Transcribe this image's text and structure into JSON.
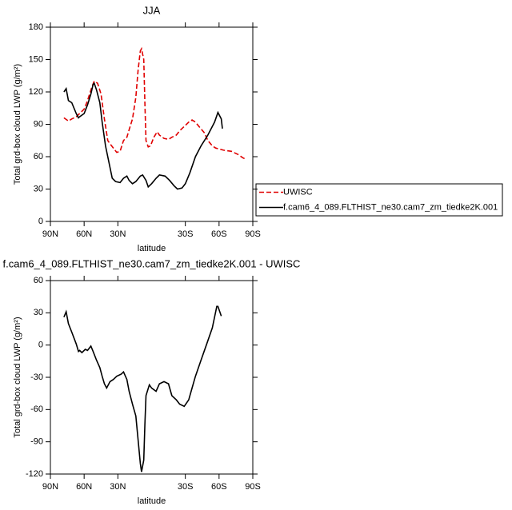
{
  "chart_data": [
    {
      "type": "line",
      "title": "JJA",
      "xlabel": "latitude",
      "ylabel": "Total grd-box cloud LWP (g/m²)",
      "xlim": [
        90,
        -90
      ],
      "xticks": [
        {
          "value": 90,
          "label": "90N"
        },
        {
          "value": 60,
          "label": "60N"
        },
        {
          "value": 30,
          "label": "30N"
        },
        {
          "value": -30,
          "label": "30S"
        },
        {
          "value": -60,
          "label": "60S"
        },
        {
          "value": -90,
          "label": "90S"
        }
      ],
      "ylim": [
        0,
        180
      ],
      "yticks": [
        0,
        30,
        60,
        90,
        120,
        150,
        180
      ],
      "legend": "right",
      "series": [
        {
          "name": "UWISC",
          "color": "#e00000",
          "dash": true,
          "x": [
            78,
            74,
            71,
            67,
            64,
            60,
            57,
            53,
            51,
            48,
            45,
            42,
            39,
            37,
            34,
            31,
            28,
            25,
            22,
            20,
            17,
            14,
            12,
            10,
            9,
            7,
            6,
            5,
            3,
            1,
            -2,
            -5,
            -7,
            -11,
            -15,
            -18,
            -22,
            -25,
            -29,
            -33,
            -36,
            -39,
            -43,
            -47,
            -50,
            -54,
            -57,
            -64,
            -71,
            -77,
            -81,
            -83
          ],
          "values": [
            96,
            93,
            95,
            97,
            100,
            104,
            112,
            125,
            130,
            128,
            118,
            95,
            75,
            72,
            68,
            64,
            65,
            75,
            78,
            85,
            95,
            115,
            140,
            158,
            160,
            150,
            110,
            75,
            69,
            70,
            78,
            83,
            80,
            77,
            76,
            78,
            80,
            84,
            88,
            92,
            94,
            92,
            87,
            82,
            75,
            70,
            68,
            66,
            65,
            62,
            59,
            58
          ]
        },
        {
          "name": "f.cam6_4_089.FLTHIST_ne30.cam7_zm_tiedke2K.001",
          "color": "#000000",
          "dash": false,
          "x": [
            78,
            76,
            74,
            71,
            67,
            65,
            64,
            60,
            57,
            54,
            52,
            51,
            49,
            46,
            44,
            41,
            37,
            35,
            32,
            28,
            25,
            22,
            20,
            17,
            14,
            10,
            8,
            5,
            3,
            0,
            -4,
            -7,
            -12,
            -16,
            -20,
            -23,
            -27,
            -30,
            -34,
            -39,
            -44,
            -50,
            -56,
            -59,
            -62,
            -63
          ],
          "values": [
            120,
            123,
            112,
            110,
            100,
            96,
            97,
            100,
            108,
            118,
            127,
            128,
            122,
            110,
            92,
            70,
            50,
            40,
            37,
            36,
            40,
            42,
            38,
            35,
            37,
            42,
            43,
            38,
            32,
            35,
            40,
            43,
            42,
            38,
            33,
            30,
            31,
            35,
            45,
            60,
            70,
            80,
            92,
            101,
            95,
            86
          ]
        }
      ]
    },
    {
      "type": "line",
      "title": "f.cam6_4_089.FLTHIST_ne30.cam7_zm_tiedke2K.001 - UWISC",
      "xlabel": "latitude",
      "ylabel": "Total grd-box cloud LWP (g/m²)",
      "xlim": [
        90,
        -90
      ],
      "xticks": [
        {
          "value": 90,
          "label": "90N"
        },
        {
          "value": 60,
          "label": "60N"
        },
        {
          "value": 30,
          "label": "30N"
        },
        {
          "value": -30,
          "label": "30S"
        },
        {
          "value": -60,
          "label": "60S"
        },
        {
          "value": -90,
          "label": "90S"
        }
      ],
      "ylim": [
        -120,
        60
      ],
      "yticks": [
        -120,
        -90,
        -60,
        -30,
        0,
        30,
        60
      ],
      "series": [
        {
          "color": "#000000",
          "dash": false,
          "x": [
            78,
            76,
            74,
            71,
            67,
            65,
            64,
            62,
            59,
            57,
            54,
            52,
            49,
            46,
            44,
            42,
            40,
            37,
            34,
            31,
            27,
            25,
            22,
            20,
            17,
            14,
            12,
            10,
            9,
            7,
            6,
            5,
            2,
            0,
            -4,
            -7,
            -11,
            -15,
            -18,
            -22,
            -25,
            -29,
            -33,
            -36,
            -39,
            -44,
            -49,
            -54,
            -58,
            -59,
            -62
          ],
          "values": [
            26,
            31,
            20,
            12,
            1,
            -6,
            -5,
            -7,
            -4,
            -5,
            -1,
            -6,
            -14,
            -21,
            -29,
            -36,
            -40,
            -34,
            -32,
            -29,
            -27,
            -25,
            -32,
            -43,
            -55,
            -66,
            -88,
            -110,
            -118,
            -107,
            -74,
            -47,
            -37,
            -40,
            -43,
            -36,
            -34,
            -36,
            -47,
            -51,
            -55,
            -57,
            -51,
            -40,
            -29,
            -14,
            1,
            16,
            36,
            36,
            27
          ]
        }
      ]
    }
  ]
}
